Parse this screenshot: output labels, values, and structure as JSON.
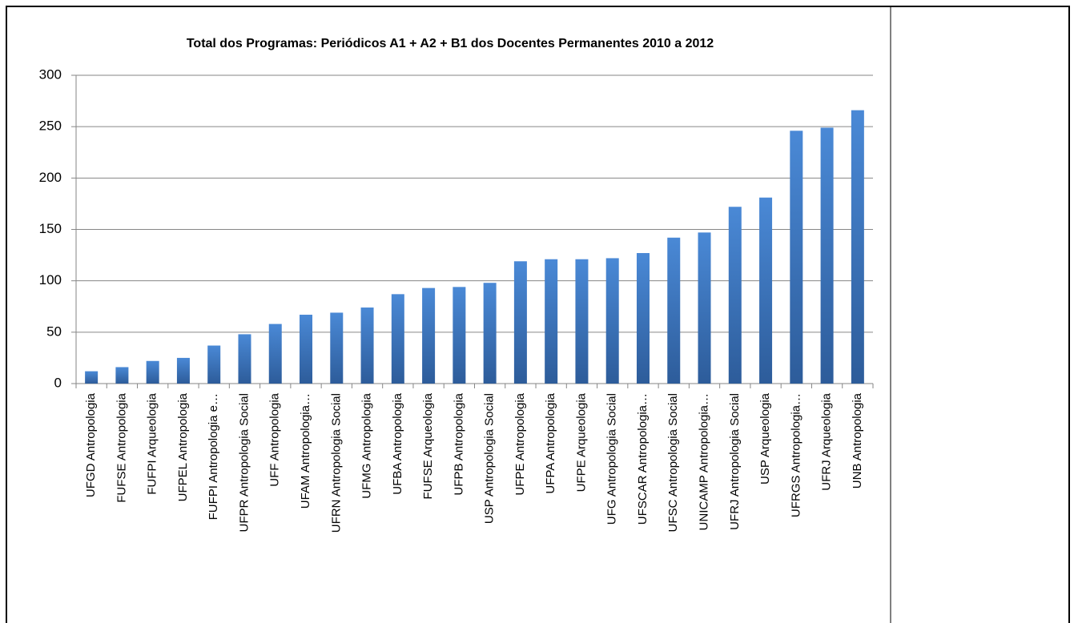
{
  "chart_data": {
    "type": "bar",
    "title": "Total dos Programas: Periódicos A1 + A2 + B1 dos Docentes Permanentes 2010 a 2012",
    "categories": [
      "UFGD Antropologia",
      "FUFSE Antropologia",
      "FUFPI Arqueologia",
      "UFPEL Antropologia",
      "FUFPI Antropologia e…",
      "UFPR Antropologia Social",
      "UFF Antropologia",
      "UFAM Antropologia…",
      "UFRN Antropologia Social",
      "UFMG Antropologia",
      "UFBA Antropologia",
      "FUFSE Arqueologia",
      "UFPB Antropologia",
      "USP Antropologia Social",
      "UFPE Antropologia",
      "UFPA Antropologia",
      "UFPE Arqueologia",
      "UFG Antropologia Social",
      "UFSCAR Antropologia…",
      "UFSC Antropologia Social",
      "UNICAMP Antropologia…",
      "UFRJ Antropologia Social",
      "USP Arqueologia",
      "UFRGS Antropologia…",
      "UFRJ Arqueologia",
      "UNB Antropologia"
    ],
    "values": [
      12,
      16,
      22,
      25,
      37,
      48,
      58,
      67,
      69,
      74,
      87,
      93,
      94,
      98,
      119,
      121,
      121,
      122,
      127,
      142,
      147,
      172,
      181,
      246,
      249,
      266
    ],
    "color": "#3b73b9",
    "ylim": [
      0,
      300
    ],
    "yticks": [
      0,
      50,
      100,
      150,
      200,
      250,
      300
    ],
    "grid": true
  }
}
